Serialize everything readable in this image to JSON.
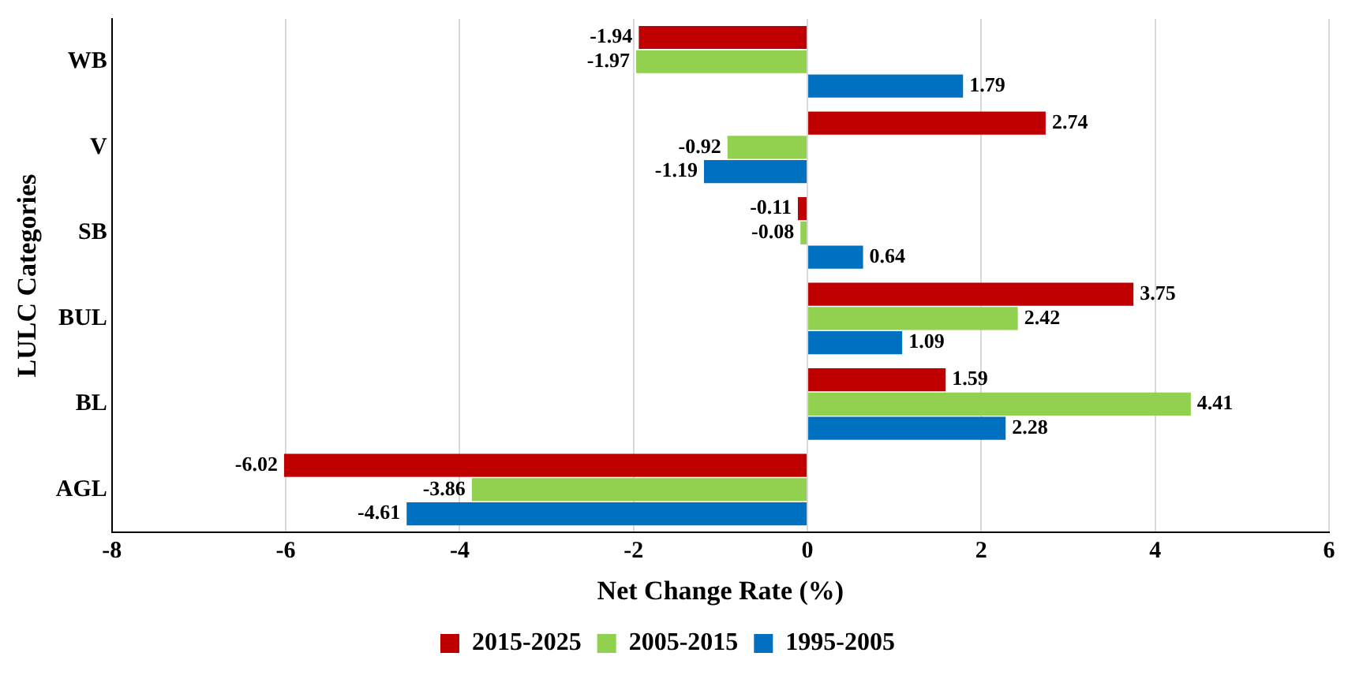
{
  "chart_data": {
    "type": "bar",
    "orientation": "horizontal",
    "xlabel": "Net Change Rate (%)",
    "ylabel": "LULC Categories",
    "categories": [
      "WB",
      "V",
      "SB",
      "BUL",
      "BL",
      "AGL"
    ],
    "series": [
      {
        "name": "2015-2025",
        "color": "#c00000",
        "values": [
          -1.94,
          2.74,
          -0.11,
          3.75,
          1.59,
          -6.02
        ]
      },
      {
        "name": "2005-2015",
        "color": "#92d050",
        "values": [
          -1.97,
          -0.92,
          -0.08,
          2.42,
          4.41,
          -3.86
        ]
      },
      {
        "name": "1995-2005",
        "color": "#0070c0",
        "values": [
          1.79,
          -1.19,
          0.64,
          1.09,
          2.28,
          -4.61
        ]
      }
    ],
    "xlim": [
      -8,
      6
    ],
    "xticks": [
      -8,
      -6,
      -4,
      -2,
      0,
      2,
      4,
      6
    ],
    "grid": "x",
    "legend": "bottom",
    "data_labels": true
  }
}
